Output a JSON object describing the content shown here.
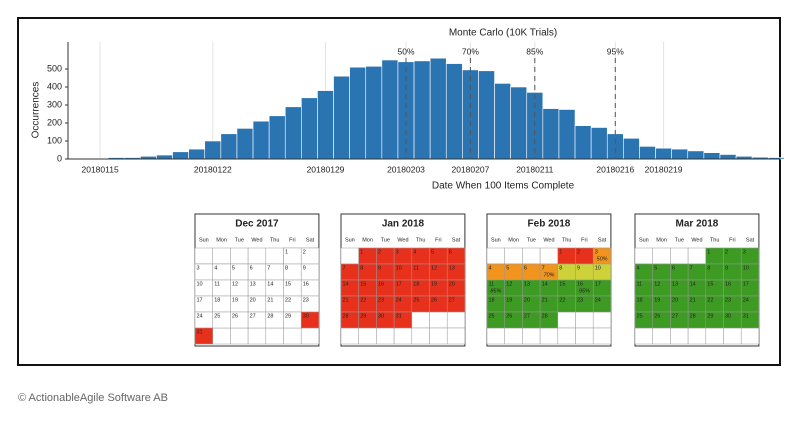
{
  "chart_data": {
    "type": "bar",
    "title": "Monte Carlo (10K Trials)",
    "y_label": "Occurrences",
    "x_label": "Date When 100 Items Complete",
    "categories": [
      null,
      "20180115",
      null,
      null,
      null,
      null,
      null,
      null,
      "20180122",
      null,
      null,
      null,
      null,
      null,
      null,
      "20180129",
      null,
      null,
      null,
      null,
      "20180203",
      null,
      null,
      null,
      "20180207",
      null,
      null,
      null,
      "20180211",
      null,
      null,
      null,
      null,
      "20180216",
      null,
      null,
      "20180219",
      null,
      null,
      null,
      null,
      null,
      null,
      null
    ],
    "values": [
      3,
      3,
      8,
      8,
      15,
      22,
      40,
      55,
      100,
      140,
      170,
      210,
      240,
      290,
      340,
      380,
      460,
      510,
      515,
      550,
      540,
      545,
      560,
      530,
      495,
      490,
      420,
      400,
      370,
      280,
      275,
      185,
      175,
      140,
      115,
      70,
      60,
      55,
      45,
      35,
      25,
      15,
      10,
      8
    ],
    "color": "#2b74b2",
    "ylim": [
      0,
      650
    ],
    "yticks": [
      0,
      100,
      200,
      300,
      400,
      500
    ],
    "grid": true,
    "percentiles": [
      {
        "label": "50%",
        "x": "20180203"
      },
      {
        "label": "70%",
        "x": "20180207"
      },
      {
        "label": "85%",
        "x": "20180211"
      },
      {
        "label": "95%",
        "x": "20180216"
      }
    ]
  },
  "weekdays": [
    "Sun",
    "Mon",
    "Tue",
    "Wed",
    "Thu",
    "Fri",
    "Sat"
  ],
  "calendars": [
    {
      "title": "Dec 2017",
      "days": [
        1,
        2,
        3,
        4,
        5,
        6,
        7,
        8,
        9,
        10,
        11,
        12,
        13,
        14,
        15,
        16,
        17,
        18,
        19,
        20,
        21,
        22,
        23,
        24,
        25,
        26,
        27,
        28,
        29,
        30,
        31
      ],
      "colors": [
        "#ffffff",
        "#ffffff",
        "#ffffff",
        "#ffffff",
        "#ffffff",
        "#ffffff",
        "#ffffff",
        "#ffffff",
        "#ffffff",
        "#ffffff",
        "#ffffff",
        "#ffffff",
        "#ffffff",
        "#ffffff",
        "#ffffff",
        "#ffffff",
        "#ffffff",
        "#ffffff",
        "#ffffff",
        "#ffffff",
        "#ffffff",
        "#ffffff",
        "#ffffff",
        "#ffffff",
        "#ffffff",
        "#ffffff",
        "#ffffff",
        "#ffffff",
        "#ffffff",
        "#e8311c",
        "#e8311c"
      ]
    },
    {
      "title": "Jan 2018",
      "days": [
        1,
        2,
        3,
        4,
        5,
        6,
        7,
        8,
        9,
        10,
        11,
        12,
        13,
        14,
        15,
        16,
        17,
        18,
        19,
        20,
        21,
        22,
        23,
        24,
        25,
        26,
        27,
        28,
        29,
        30,
        31
      ],
      "colors": [
        "#e8311c",
        "#e8311c",
        "#e8311c",
        "#e8311c",
        "#e8311c",
        "#e8311c",
        "#e8311c",
        "#e8311c",
        "#e8311c",
        "#e8311c",
        "#e8311c",
        "#e8311c",
        "#e8311c",
        "#e8311c",
        "#e8311c",
        "#e8311c",
        "#e8311c",
        "#e8311c",
        "#e8311c",
        "#e8311c",
        "#e8311c",
        "#e8311c",
        "#e8311c",
        "#e8311c",
        "#e8311c",
        "#e8311c",
        "#e8311c",
        "#e8311c",
        "#e8311c",
        "#e8311c",
        "#e8311c"
      ]
    },
    {
      "title": "Feb 2018",
      "days": [
        1,
        2,
        3,
        4,
        5,
        6,
        7,
        8,
        9,
        10,
        11,
        12,
        13,
        14,
        15,
        16,
        17,
        18,
        19,
        20,
        21,
        22,
        23,
        24,
        25,
        26,
        27,
        28
      ],
      "colors": [
        "#e8311c",
        "#e8311c",
        "#f0941e",
        "#f0941e",
        "#f0941e",
        "#f0941e",
        "#f0941e",
        "#cdd13a",
        "#cdd13a",
        "#cdd13a",
        "#3d9a22",
        "#3d9a22",
        "#3d9a22",
        "#3d9a22",
        "#3d9a22",
        "#3d9a22",
        "#3d9a22",
        "#3d9a22",
        "#3d9a22",
        "#3d9a22",
        "#3d9a22",
        "#3d9a22",
        "#3d9a22",
        "#3d9a22",
        "#3d9a22",
        "#3d9a22",
        "#3d9a22",
        "#3d9a22"
      ],
      "labels": [
        null,
        null,
        "50%",
        null,
        null,
        null,
        "70%",
        null,
        null,
        null,
        "85%",
        null,
        null,
        null,
        null,
        "95%",
        null,
        null,
        null,
        null,
        null,
        null,
        null,
        null,
        null,
        null,
        null,
        null
      ]
    },
    {
      "title": "Mar 2018",
      "days": [
        1,
        2,
        3,
        4,
        5,
        6,
        7,
        8,
        9,
        10,
        11,
        12,
        13,
        14,
        15,
        16,
        17,
        18,
        19,
        20,
        21,
        22,
        23,
        24,
        25,
        26,
        27,
        28,
        29,
        30,
        31
      ],
      "colors": [
        "#3d9a22",
        "#3d9a22",
        "#3d9a22",
        "#3d9a22",
        "#3d9a22",
        "#3d9a22",
        "#3d9a22",
        "#3d9a22",
        "#3d9a22",
        "#3d9a22",
        "#3d9a22",
        "#3d9a22",
        "#3d9a22",
        "#3d9a22",
        "#3d9a22",
        "#3d9a22",
        "#3d9a22",
        "#3d9a22",
        "#3d9a22",
        "#3d9a22",
        "#3d9a22",
        "#3d9a22",
        "#3d9a22",
        "#3d9a22",
        "#3d9a22",
        "#3d9a22",
        "#3d9a22",
        "#3d9a22",
        "#3d9a22",
        "#3d9a22",
        "#3d9a22"
      ]
    }
  ],
  "footer": "© ActionableAgile Software AB"
}
